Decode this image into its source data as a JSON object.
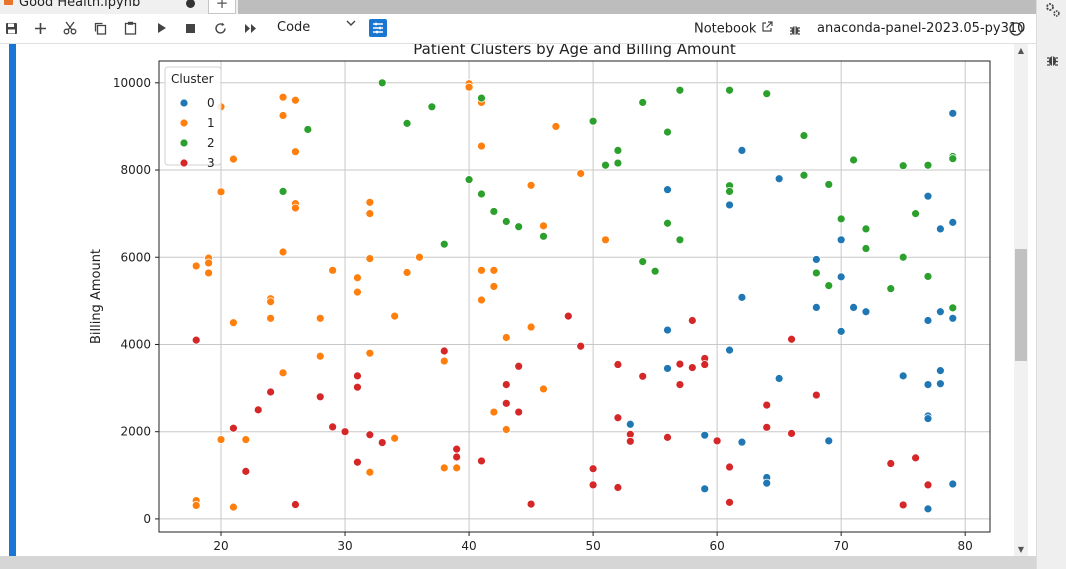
{
  "tab": {
    "title": "Good Health.ipynb"
  },
  "toolbar": {
    "icons": [
      "save-icon",
      "add-icon",
      "cut-icon",
      "copy-icon",
      "paste-icon",
      "run-icon",
      "stop-icon",
      "restart-icon",
      "fast-forward-icon"
    ],
    "cell_type": "Code",
    "notebook_label": "Notebook",
    "kernel_name": "anaconda-panel-2023.05-py310"
  },
  "colors": {
    "accent": "#1976d2",
    "c0": "#1f77b4",
    "c1": "#ff7f0e",
    "c2": "#2ca02c",
    "c3": "#d62728"
  },
  "chart_data": {
    "type": "scatter",
    "title": "Patient Clusters by Age and Billing Amount",
    "xlabel": "",
    "ylabel": "Billing Amount",
    "xlim": [
      15,
      82
    ],
    "ylim": [
      -300,
      10500
    ],
    "xticks": [
      20,
      30,
      40,
      50,
      60,
      70,
      80
    ],
    "yticks": [
      0,
      2000,
      4000,
      6000,
      8000,
      10000
    ],
    "grid": true,
    "legend": {
      "title": "Cluster",
      "placement": "top-left",
      "entries": [
        "0",
        "1",
        "2",
        "3"
      ]
    },
    "series": [
      {
        "name": "0",
        "color": "#1f77b4",
        "points": [
          [
            79,
            9300
          ],
          [
            62,
            8450
          ],
          [
            65,
            7800
          ],
          [
            56,
            7550
          ],
          [
            61,
            7200
          ],
          [
            77,
            7400
          ],
          [
            79,
            6800
          ],
          [
            78,
            6650
          ],
          [
            70,
            6400
          ],
          [
            68,
            5950
          ],
          [
            70,
            5550
          ],
          [
            62,
            5080
          ],
          [
            68,
            4850
          ],
          [
            71,
            4850
          ],
          [
            72,
            4750
          ],
          [
            78,
            4750
          ],
          [
            77,
            4550
          ],
          [
            79,
            4600
          ],
          [
            56,
            4330
          ],
          [
            70,
            4300
          ],
          [
            61,
            3870
          ],
          [
            56,
            3450
          ],
          [
            78,
            3400
          ],
          [
            75,
            3280
          ],
          [
            65,
            3220
          ],
          [
            77,
            3080
          ],
          [
            78,
            3100
          ],
          [
            77,
            2360
          ],
          [
            77,
            2300
          ],
          [
            53,
            2170
          ],
          [
            59,
            1920
          ],
          [
            62,
            1760
          ],
          [
            69,
            1790
          ],
          [
            64,
            950
          ],
          [
            64,
            820
          ],
          [
            79,
            800
          ],
          [
            59,
            690
          ],
          [
            77,
            230
          ]
        ]
      },
      {
        "name": "1",
        "color": "#ff7f0e",
        "points": [
          [
            40,
            9980
          ],
          [
            40,
            9900
          ],
          [
            25,
            9670
          ],
          [
            26,
            9600
          ],
          [
            41,
            9550
          ],
          [
            20,
            9450
          ],
          [
            25,
            9250
          ],
          [
            47,
            9000
          ],
          [
            41,
            8550
          ],
          [
            26,
            8420
          ],
          [
            21,
            8250
          ],
          [
            49,
            7920
          ],
          [
            45,
            7650
          ],
          [
            20,
            7500
          ],
          [
            32,
            7260
          ],
          [
            26,
            7230
          ],
          [
            26,
            7130
          ],
          [
            32,
            7000
          ],
          [
            46,
            6720
          ],
          [
            51,
            6400
          ],
          [
            25,
            6120
          ],
          [
            36,
            6000
          ],
          [
            19,
            5980
          ],
          [
            32,
            5970
          ],
          [
            19,
            5870
          ],
          [
            18,
            5800
          ],
          [
            29,
            5700
          ],
          [
            41,
            5700
          ],
          [
            42,
            5700
          ],
          [
            19,
            5640
          ],
          [
            35,
            5650
          ],
          [
            31,
            5530
          ],
          [
            42,
            5330
          ],
          [
            31,
            5200
          ],
          [
            24,
            5050
          ],
          [
            41,
            5020
          ],
          [
            24,
            4980
          ],
          [
            34,
            4650
          ],
          [
            24,
            4600
          ],
          [
            28,
            4600
          ],
          [
            21,
            4500
          ],
          [
            45,
            4400
          ],
          [
            43,
            4160
          ],
          [
            32,
            3800
          ],
          [
            28,
            3730
          ],
          [
            38,
            3620
          ],
          [
            25,
            3350
          ],
          [
            46,
            2980
          ],
          [
            42,
            2450
          ],
          [
            43,
            2050
          ],
          [
            34,
            1850
          ],
          [
            20,
            1820
          ],
          [
            22,
            1820
          ],
          [
            38,
            1170
          ],
          [
            39,
            1170
          ],
          [
            32,
            1070
          ],
          [
            18,
            420
          ],
          [
            18,
            310
          ],
          [
            21,
            270
          ]
        ]
      },
      {
        "name": "2",
        "color": "#2ca02c",
        "points": [
          [
            33,
            10000
          ],
          [
            57,
            9830
          ],
          [
            61,
            9830
          ],
          [
            64,
            9750
          ],
          [
            41,
            9650
          ],
          [
            54,
            9550
          ],
          [
            37,
            9450
          ],
          [
            50,
            9120
          ],
          [
            35,
            9070
          ],
          [
            27,
            8930
          ],
          [
            56,
            8870
          ],
          [
            67,
            8790
          ],
          [
            52,
            8450
          ],
          [
            71,
            8230
          ],
          [
            79,
            8310
          ],
          [
            79,
            8260
          ],
          [
            52,
            8160
          ],
          [
            51,
            8110
          ],
          [
            75,
            8100
          ],
          [
            77,
            8110
          ],
          [
            67,
            7880
          ],
          [
            40,
            7780
          ],
          [
            69,
            7670
          ],
          [
            61,
            7640
          ],
          [
            61,
            7510
          ],
          [
            25,
            7510
          ],
          [
            41,
            7450
          ],
          [
            42,
            7050
          ],
          [
            76,
            7000
          ],
          [
            70,
            6880
          ],
          [
            43,
            6820
          ],
          [
            56,
            6780
          ],
          [
            44,
            6700
          ],
          [
            72,
            6650
          ],
          [
            46,
            6480
          ],
          [
            57,
            6400
          ],
          [
            38,
            6300
          ],
          [
            72,
            6200
          ],
          [
            75,
            6000
          ],
          [
            54,
            5900
          ],
          [
            55,
            5680
          ],
          [
            68,
            5640
          ],
          [
            77,
            5560
          ],
          [
            69,
            5350
          ],
          [
            74,
            5280
          ],
          [
            79,
            4840
          ]
        ]
      },
      {
        "name": "3",
        "color": "#d62728",
        "points": [
          [
            48,
            4650
          ],
          [
            58,
            4550
          ],
          [
            66,
            4120
          ],
          [
            18,
            4100
          ],
          [
            49,
            3960
          ],
          [
            38,
            3850
          ],
          [
            59,
            3680
          ],
          [
            57,
            3550
          ],
          [
            52,
            3540
          ],
          [
            59,
            3540
          ],
          [
            44,
            3500
          ],
          [
            58,
            3470
          ],
          [
            54,
            3270
          ],
          [
            31,
            3280
          ],
          [
            43,
            3080
          ],
          [
            57,
            3080
          ],
          [
            31,
            3020
          ],
          [
            24,
            2910
          ],
          [
            68,
            2840
          ],
          [
            28,
            2800
          ],
          [
            43,
            2650
          ],
          [
            64,
            2610
          ],
          [
            23,
            2500
          ],
          [
            44,
            2450
          ],
          [
            52,
            2320
          ],
          [
            29,
            2110
          ],
          [
            64,
            2100
          ],
          [
            21,
            2080
          ],
          [
            30,
            2000
          ],
          [
            66,
            1960
          ],
          [
            53,
            1940
          ],
          [
            32,
            1930
          ],
          [
            56,
            1870
          ],
          [
            53,
            1780
          ],
          [
            60,
            1790
          ],
          [
            33,
            1750
          ],
          [
            39,
            1600
          ],
          [
            39,
            1420
          ],
          [
            41,
            1330
          ],
          [
            31,
            1300
          ],
          [
            74,
            1270
          ],
          [
            76,
            1400
          ],
          [
            61,
            1190
          ],
          [
            50,
            1150
          ],
          [
            22,
            1090
          ],
          [
            50,
            780
          ],
          [
            52,
            720
          ],
          [
            77,
            780
          ],
          [
            61,
            380
          ],
          [
            26,
            330
          ],
          [
            45,
            340
          ],
          [
            75,
            320
          ]
        ]
      }
    ]
  }
}
